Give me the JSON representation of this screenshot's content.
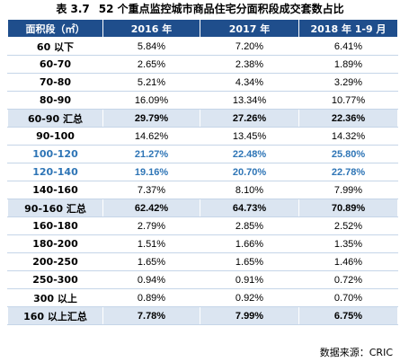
{
  "caption": {
    "number": "表 3.7",
    "title": "52 个重点监控城市商品住宅分面积段成交套数占比"
  },
  "table": {
    "headers": [
      "面积段（㎡）",
      "2016 年",
      "2017 年",
      "2018 年 1-9 月"
    ],
    "rows": [
      {
        "label": "60 以下",
        "values": [
          "5.84%",
          "7.20%",
          "6.41%"
        ],
        "style": "normal"
      },
      {
        "label": "60-70",
        "values": [
          "2.65%",
          "2.38%",
          "1.89%"
        ],
        "style": "normal"
      },
      {
        "label": "70-80",
        "values": [
          "5.21%",
          "4.34%",
          "3.29%"
        ],
        "style": "normal"
      },
      {
        "label": "80-90",
        "values": [
          "16.09%",
          "13.34%",
          "10.77%"
        ],
        "style": "normal"
      },
      {
        "label": "60-90 汇总",
        "values": [
          "29.79%",
          "27.26%",
          "22.36%"
        ],
        "style": "summary"
      },
      {
        "label": "90-100",
        "values": [
          "14.62%",
          "13.45%",
          "14.32%"
        ],
        "style": "normal"
      },
      {
        "label": "100-120",
        "values": [
          "21.27%",
          "22.48%",
          "25.80%"
        ],
        "style": "highlight"
      },
      {
        "label": "120-140",
        "values": [
          "19.16%",
          "20.70%",
          "22.78%"
        ],
        "style": "highlight"
      },
      {
        "label": "140-160",
        "values": [
          "7.37%",
          "8.10%",
          "7.99%"
        ],
        "style": "normal"
      },
      {
        "label": "90-160 汇总",
        "values": [
          "62.42%",
          "64.73%",
          "70.89%"
        ],
        "style": "summary"
      },
      {
        "label": "160-180",
        "values": [
          "2.79%",
          "2.85%",
          "2.52%"
        ],
        "style": "normal"
      },
      {
        "label": "180-200",
        "values": [
          "1.51%",
          "1.66%",
          "1.35%"
        ],
        "style": "normal"
      },
      {
        "label": "200-250",
        "values": [
          "1.65%",
          "1.65%",
          "1.46%"
        ],
        "style": "normal"
      },
      {
        "label": "250-300",
        "values": [
          "0.94%",
          "0.91%",
          "0.72%"
        ],
        "style": "normal"
      },
      {
        "label": "300 以上",
        "values": [
          "0.89%",
          "0.92%",
          "0.70%"
        ],
        "style": "normal"
      },
      {
        "label": "160 以上汇总",
        "values": [
          "7.78%",
          "7.99%",
          "6.75%"
        ],
        "style": "summary"
      }
    ]
  },
  "source": "数据来源：CRIC",
  "colors": {
    "header_bg": "#1f4e8c",
    "summary_bg": "#dbe5f1",
    "highlight_text": "#2e75b6"
  }
}
